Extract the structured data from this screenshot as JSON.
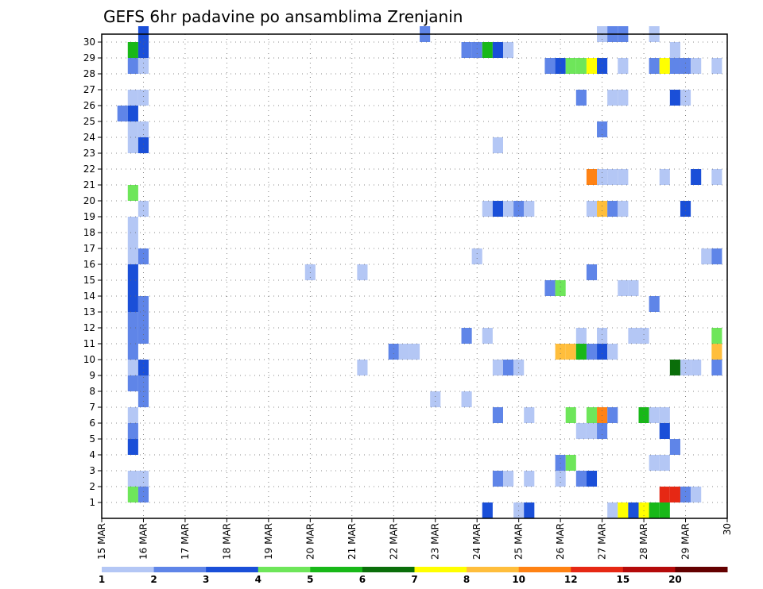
{
  "chart_data": {
    "type": "heatmap",
    "title": "GEFS 6hr padavine po ansamblima Zrenjanin",
    "xlabel": "",
    "ylabel": "",
    "x_range": [
      15.0,
      30.0
    ],
    "y_range": [
      0,
      30
    ],
    "x_ticks": [
      {
        "x": 15,
        "label": "15 MAR"
      },
      {
        "x": 16,
        "label": "16 MAR"
      },
      {
        "x": 17,
        "label": "17 MAR"
      },
      {
        "x": 18,
        "label": "18 MAR"
      },
      {
        "x": 19,
        "label": "19 MAR"
      },
      {
        "x": 20,
        "label": "20 MAR"
      },
      {
        "x": 21,
        "label": "21 MAR"
      },
      {
        "x": 22,
        "label": "22 MAR"
      },
      {
        "x": 23,
        "label": "23 MAR"
      },
      {
        "x": 24,
        "label": "24 MAR"
      },
      {
        "x": 25,
        "label": "25 MAR"
      },
      {
        "x": 26,
        "label": "26 MAR"
      },
      {
        "x": 27,
        "label": "27 MAR"
      },
      {
        "x": 28,
        "label": "28 MAR"
      },
      {
        "x": 29,
        "label": "29 MAR"
      },
      {
        "x": 30,
        "label": "30"
      }
    ],
    "y_ticks": [
      "1",
      "2",
      "3",
      "4",
      "5",
      "6",
      "7",
      "8",
      "9",
      "10",
      "11",
      "12",
      "13",
      "14",
      "15",
      "16",
      "17",
      "18",
      "19",
      "20",
      "21",
      "22",
      "23",
      "24",
      "25",
      "26",
      "27",
      "28",
      "29",
      "30"
    ],
    "grid": true,
    "legend_placement": "bottom",
    "colorbar": {
      "labels": [
        "1",
        "2",
        "3",
        "4",
        "5",
        "6",
        "7",
        "8",
        "10",
        "12",
        "15",
        "20"
      ],
      "colors": [
        "#b4c7f5",
        "#5f85e8",
        "#1a4fd8",
        "#6ee65a",
        "#18b818",
        "#0a6e0a",
        "#ffff00",
        "#ffbe3c",
        "#ff8214",
        "#e62814",
        "#b40a0a",
        "#640000"
      ]
    },
    "cells": [
      {
        "t": 15.5,
        "m": 25,
        "c": 1
      },
      {
        "t": 15.75,
        "m": 1,
        "c": 3
      },
      {
        "t": 15.75,
        "m": 2,
        "c": 0
      },
      {
        "t": 15.75,
        "m": 4,
        "c": 2
      },
      {
        "t": 15.75,
        "m": 5,
        "c": 1
      },
      {
        "t": 15.75,
        "m": 6,
        "c": 0
      },
      {
        "t": 15.75,
        "m": 8,
        "c": 1
      },
      {
        "t": 15.75,
        "m": 9,
        "c": 0
      },
      {
        "t": 15.75,
        "m": 10,
        "c": 1
      },
      {
        "t": 15.75,
        "m": 11,
        "c": 1
      },
      {
        "t": 15.75,
        "m": 12,
        "c": 1
      },
      {
        "t": 15.75,
        "m": 13,
        "c": 2
      },
      {
        "t": 15.75,
        "m": 14,
        "c": 2
      },
      {
        "t": 15.75,
        "m": 15,
        "c": 2
      },
      {
        "t": 15.75,
        "m": 16,
        "c": 0
      },
      {
        "t": 15.75,
        "m": 17,
        "c": 0
      },
      {
        "t": 15.75,
        "m": 18,
        "c": 0
      },
      {
        "t": 15.75,
        "m": 20,
        "c": 3
      },
      {
        "t": 15.75,
        "m": 23,
        "c": 0
      },
      {
        "t": 15.75,
        "m": 24,
        "c": 0
      },
      {
        "t": 15.75,
        "m": 25,
        "c": 2
      },
      {
        "t": 15.75,
        "m": 26,
        "c": 0
      },
      {
        "t": 15.75,
        "m": 28,
        "c": 1
      },
      {
        "t": 15.75,
        "m": 29,
        "c": 4
      },
      {
        "t": 16.0,
        "m": 1,
        "c": 1
      },
      {
        "t": 16.0,
        "m": 2,
        "c": 0
      },
      {
        "t": 16.0,
        "m": 7,
        "c": 1
      },
      {
        "t": 16.0,
        "m": 8,
        "c": 1
      },
      {
        "t": 16.0,
        "m": 9,
        "c": 2
      },
      {
        "t": 16.0,
        "m": 11,
        "c": 1
      },
      {
        "t": 16.0,
        "m": 12,
        "c": 1
      },
      {
        "t": 16.0,
        "m": 13,
        "c": 1
      },
      {
        "t": 16.0,
        "m": 16,
        "c": 1
      },
      {
        "t": 16.0,
        "m": 19,
        "c": 0
      },
      {
        "t": 16.0,
        "m": 23,
        "c": 2
      },
      {
        "t": 16.0,
        "m": 24,
        "c": 0
      },
      {
        "t": 16.0,
        "m": 26,
        "c": 0
      },
      {
        "t": 16.0,
        "m": 28,
        "c": 0
      },
      {
        "t": 16.0,
        "m": 29,
        "c": 2
      },
      {
        "t": 16.0,
        "m": 30,
        "c": 2
      },
      {
        "t": 20.0,
        "m": 15,
        "c": 0
      },
      {
        "t": 21.25,
        "m": 9,
        "c": 0
      },
      {
        "t": 21.25,
        "m": 15,
        "c": 0
      },
      {
        "t": 22.0,
        "m": 10,
        "c": 1
      },
      {
        "t": 22.25,
        "m": 10,
        "c": 0
      },
      {
        "t": 22.5,
        "m": 10,
        "c": 0
      },
      {
        "t": 22.75,
        "m": 30,
        "c": 1
      },
      {
        "t": 23.0,
        "m": 7,
        "c": 0
      },
      {
        "t": 23.75,
        "m": 7,
        "c": 0
      },
      {
        "t": 23.75,
        "m": 11,
        "c": 1
      },
      {
        "t": 23.75,
        "m": 29,
        "c": 1
      },
      {
        "t": 24.0,
        "m": 16,
        "c": 0
      },
      {
        "t": 24.0,
        "m": 29,
        "c": 1
      },
      {
        "t": 24.25,
        "m": 0,
        "c": 2
      },
      {
        "t": 24.25,
        "m": 11,
        "c": 0
      },
      {
        "t": 24.25,
        "m": 19,
        "c": 0
      },
      {
        "t": 24.25,
        "m": 29,
        "c": 4
      },
      {
        "t": 24.5,
        "m": 2,
        "c": 1
      },
      {
        "t": 24.5,
        "m": 6,
        "c": 1
      },
      {
        "t": 24.5,
        "m": 9,
        "c": 0
      },
      {
        "t": 24.5,
        "m": 19,
        "c": 2
      },
      {
        "t": 24.5,
        "m": 23,
        "c": 0
      },
      {
        "t": 24.5,
        "m": 29,
        "c": 2
      },
      {
        "t": 24.75,
        "m": 2,
        "c": 0
      },
      {
        "t": 24.75,
        "m": 9,
        "c": 1
      },
      {
        "t": 24.75,
        "m": 19,
        "c": 0
      },
      {
        "t": 24.75,
        "m": 29,
        "c": 0
      },
      {
        "t": 25.0,
        "m": 0,
        "c": 0
      },
      {
        "t": 25.0,
        "m": 9,
        "c": 0
      },
      {
        "t": 25.0,
        "m": 19,
        "c": 1
      },
      {
        "t": 25.25,
        "m": 0,
        "c": 2
      },
      {
        "t": 25.25,
        "m": 2,
        "c": 0
      },
      {
        "t": 25.25,
        "m": 6,
        "c": 0
      },
      {
        "t": 25.25,
        "m": 19,
        "c": 0
      },
      {
        "t": 25.75,
        "m": 14,
        "c": 1
      },
      {
        "t": 25.75,
        "m": 28,
        "c": 1
      },
      {
        "t": 26.0,
        "m": 2,
        "c": 0
      },
      {
        "t": 26.0,
        "m": 3,
        "c": 1
      },
      {
        "t": 26.0,
        "m": 10,
        "c": 7
      },
      {
        "t": 26.0,
        "m": 14,
        "c": 3
      },
      {
        "t": 26.0,
        "m": 28,
        "c": 2
      },
      {
        "t": 26.25,
        "m": 3,
        "c": 3
      },
      {
        "t": 26.25,
        "m": 6,
        "c": 3
      },
      {
        "t": 26.25,
        "m": 10,
        "c": 7
      },
      {
        "t": 26.25,
        "m": 28,
        "c": 3
      },
      {
        "t": 26.5,
        "m": 2,
        "c": 1
      },
      {
        "t": 26.5,
        "m": 5,
        "c": 0
      },
      {
        "t": 26.5,
        "m": 10,
        "c": 4
      },
      {
        "t": 26.5,
        "m": 11,
        "c": 0
      },
      {
        "t": 26.5,
        "m": 26,
        "c": 1
      },
      {
        "t": 26.5,
        "m": 28,
        "c": 3
      },
      {
        "t": 26.75,
        "m": 2,
        "c": 2
      },
      {
        "t": 26.75,
        "m": 5,
        "c": 0
      },
      {
        "t": 26.75,
        "m": 6,
        "c": 3
      },
      {
        "t": 26.75,
        "m": 10,
        "c": 1
      },
      {
        "t": 26.75,
        "m": 15,
        "c": 1
      },
      {
        "t": 26.75,
        "m": 19,
        "c": 0
      },
      {
        "t": 26.75,
        "m": 21,
        "c": 8
      },
      {
        "t": 26.75,
        "m": 28,
        "c": 6
      },
      {
        "t": 27.0,
        "m": 5,
        "c": 1
      },
      {
        "t": 27.0,
        "m": 6,
        "c": 8
      },
      {
        "t": 27.0,
        "m": 10,
        "c": 2
      },
      {
        "t": 27.0,
        "m": 11,
        "c": 0
      },
      {
        "t": 27.0,
        "m": 19,
        "c": 7
      },
      {
        "t": 27.0,
        "m": 21,
        "c": 0
      },
      {
        "t": 27.0,
        "m": 24,
        "c": 1
      },
      {
        "t": 27.0,
        "m": 28,
        "c": 2
      },
      {
        "t": 27.0,
        "m": 30,
        "c": 0
      },
      {
        "t": 27.25,
        "m": 0,
        "c": 0
      },
      {
        "t": 27.25,
        "m": 6,
        "c": 1
      },
      {
        "t": 27.25,
        "m": 10,
        "c": 0
      },
      {
        "t": 27.25,
        "m": 19,
        "c": 1
      },
      {
        "t": 27.25,
        "m": 21,
        "c": 0
      },
      {
        "t": 27.25,
        "m": 26,
        "c": 0
      },
      {
        "t": 27.25,
        "m": 30,
        "c": 1
      },
      {
        "t": 27.5,
        "m": 0,
        "c": 6
      },
      {
        "t": 27.5,
        "m": 14,
        "c": 0
      },
      {
        "t": 27.5,
        "m": 19,
        "c": 0
      },
      {
        "t": 27.5,
        "m": 21,
        "c": 0
      },
      {
        "t": 27.5,
        "m": 26,
        "c": 0
      },
      {
        "t": 27.5,
        "m": 28,
        "c": 0
      },
      {
        "t": 27.5,
        "m": 30,
        "c": 1
      },
      {
        "t": 27.75,
        "m": 0,
        "c": 2
      },
      {
        "t": 27.75,
        "m": 11,
        "c": 0
      },
      {
        "t": 27.75,
        "m": 14,
        "c": 0
      },
      {
        "t": 28.0,
        "m": 0,
        "c": 6
      },
      {
        "t": 28.0,
        "m": 6,
        "c": 4
      },
      {
        "t": 28.0,
        "m": 11,
        "c": 0
      },
      {
        "t": 28.25,
        "m": 0,
        "c": 4
      },
      {
        "t": 28.25,
        "m": 3,
        "c": 0
      },
      {
        "t": 28.25,
        "m": 6,
        "c": 0
      },
      {
        "t": 28.25,
        "m": 13,
        "c": 1
      },
      {
        "t": 28.25,
        "m": 28,
        "c": 1
      },
      {
        "t": 28.25,
        "m": 30,
        "c": 0
      },
      {
        "t": 28.5,
        "m": 0,
        "c": 4
      },
      {
        "t": 28.5,
        "m": 1,
        "c": 9
      },
      {
        "t": 28.5,
        "m": 3,
        "c": 0
      },
      {
        "t": 28.5,
        "m": 5,
        "c": 2
      },
      {
        "t": 28.5,
        "m": 6,
        "c": 0
      },
      {
        "t": 28.5,
        "m": 21,
        "c": 0
      },
      {
        "t": 28.5,
        "m": 28,
        "c": 6
      },
      {
        "t": 28.75,
        "m": 1,
        "c": 9
      },
      {
        "t": 28.75,
        "m": 9,
        "c": 5
      },
      {
        "t": 28.75,
        "m": 4,
        "c": 1
      },
      {
        "t": 28.75,
        "m": 26,
        "c": 2
      },
      {
        "t": 28.75,
        "m": 28,
        "c": 1
      },
      {
        "t": 28.75,
        "m": 29,
        "c": 0
      },
      {
        "t": 29.0,
        "m": 1,
        "c": 1
      },
      {
        "t": 29.0,
        "m": 9,
        "c": 0
      },
      {
        "t": 29.0,
        "m": 19,
        "c": 2
      },
      {
        "t": 29.0,
        "m": 26,
        "c": 0
      },
      {
        "t": 29.0,
        "m": 28,
        "c": 1
      },
      {
        "t": 29.25,
        "m": 1,
        "c": 0
      },
      {
        "t": 29.25,
        "m": 9,
        "c": 0
      },
      {
        "t": 29.25,
        "m": 21,
        "c": 2
      },
      {
        "t": 29.25,
        "m": 28,
        "c": 0
      },
      {
        "t": 29.5,
        "m": 16,
        "c": 0
      },
      {
        "t": 29.75,
        "m": 9,
        "c": 1
      },
      {
        "t": 29.75,
        "m": 10,
        "c": 7
      },
      {
        "t": 29.75,
        "m": 11,
        "c": 3
      },
      {
        "t": 29.75,
        "m": 16,
        "c": 1
      },
      {
        "t": 29.75,
        "m": 21,
        "c": 0
      },
      {
        "t": 29.75,
        "m": 28,
        "c": 0
      }
    ]
  }
}
